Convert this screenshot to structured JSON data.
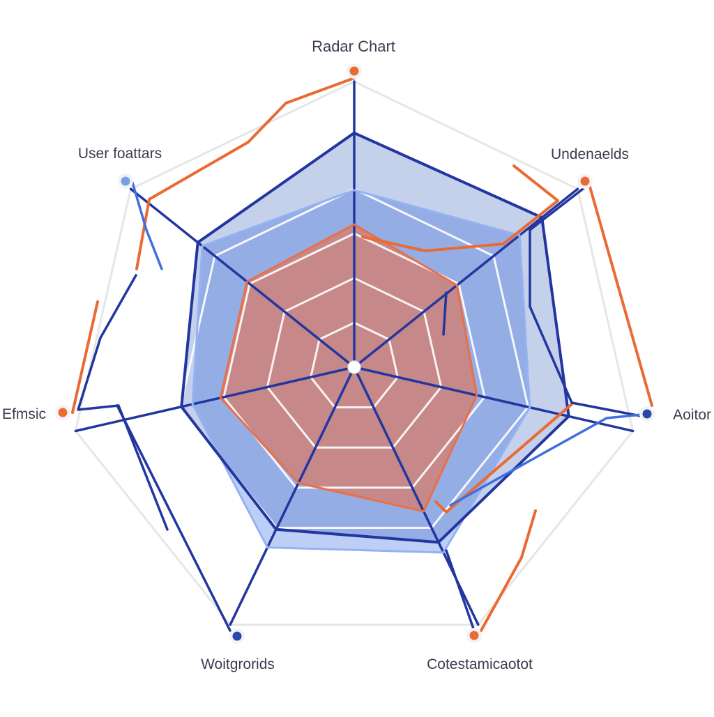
{
  "chart_data": {
    "type": "radar",
    "title": "Radar Chart",
    "axes": [
      "Radar Chart",
      "Undenaelds",
      "Aoitor",
      "Cotestamicaotot",
      "Woitgrorids",
      "Efmsic",
      "User foattars"
    ],
    "rlim": [
      0,
      100
    ],
    "rings": [
      20,
      40,
      60,
      80,
      100
    ],
    "grid": true,
    "legend": "none",
    "series": [
      {
        "values": [
          62,
          74,
          63,
          72,
          70,
          58,
          68
        ],
        "color": "#94b2f2"
      },
      {
        "values": [
          82,
          84,
          77,
          68,
          63,
          62,
          70
        ],
        "color": "#2f56b8"
      },
      {
        "values": [
          50,
          46,
          44,
          56,
          45,
          48,
          48
        ],
        "color": "#e8704a"
      }
    ],
    "colors": {
      "grid_ring": "#ffffff",
      "outer_ring": "#e6e6e6",
      "spoke": "#2236a0",
      "accent_orange": "#ea6a33",
      "marker_blue": "#2a46a8",
      "marker_light": "#7c9ce6"
    }
  }
}
